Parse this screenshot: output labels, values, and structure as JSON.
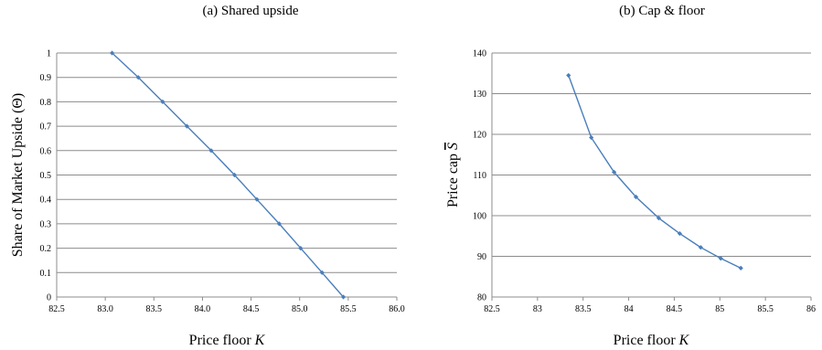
{
  "chart_data": [
    {
      "type": "line",
      "title": "(a) Shared upside",
      "xlabel": "Price floor",
      "xlabel_var": "K",
      "ylabel": "Share of Market Upside (Θ)",
      "xlim": [
        82.5,
        86.0
      ],
      "ylim": [
        0,
        1
      ],
      "x_ticks": [
        "82.5",
        "83.0",
        "83.5",
        "84.0",
        "84.5",
        "85.0",
        "85.5",
        "86.0"
      ],
      "y_ticks": [
        "0",
        "0.1",
        "0.2",
        "0.3",
        "0.4",
        "0.5",
        "0.6",
        "0.7",
        "0.8",
        "0.9",
        "1"
      ],
      "grid": "horizontal",
      "series": [
        {
          "color": "#4a7ebb",
          "x": [
            83.07,
            83.34,
            83.59,
            83.84,
            84.09,
            84.33,
            84.56,
            84.79,
            85.01,
            85.23,
            85.45
          ],
          "y": [
            1.0,
            0.9,
            0.8,
            0.7,
            0.6,
            0.5,
            0.4,
            0.3,
            0.2,
            0.1,
            0.0
          ]
        }
      ]
    },
    {
      "type": "line",
      "title": "(b) Cap & floor",
      "xlabel": "Price floor",
      "xlabel_var": "K",
      "ylabel": "Price cap",
      "ylabel_var": "S",
      "xlim": [
        82.5,
        86
      ],
      "ylim": [
        80,
        140
      ],
      "x_ticks": [
        "82.5",
        "83",
        "83.5",
        "84",
        "84.5",
        "85",
        "85.5",
        "86"
      ],
      "y_ticks": [
        "80",
        "90",
        "100",
        "110",
        "120",
        "130",
        "140"
      ],
      "grid": "horizontal",
      "series": [
        {
          "color": "#4a7ebb",
          "x": [
            83.34,
            83.59,
            83.84,
            84.08,
            84.33,
            84.56,
            84.79,
            85.01,
            85.23
          ],
          "y": [
            134.5,
            119.2,
            110.7,
            104.6,
            99.4,
            95.6,
            92.2,
            89.5,
            87.1
          ]
        }
      ]
    }
  ]
}
